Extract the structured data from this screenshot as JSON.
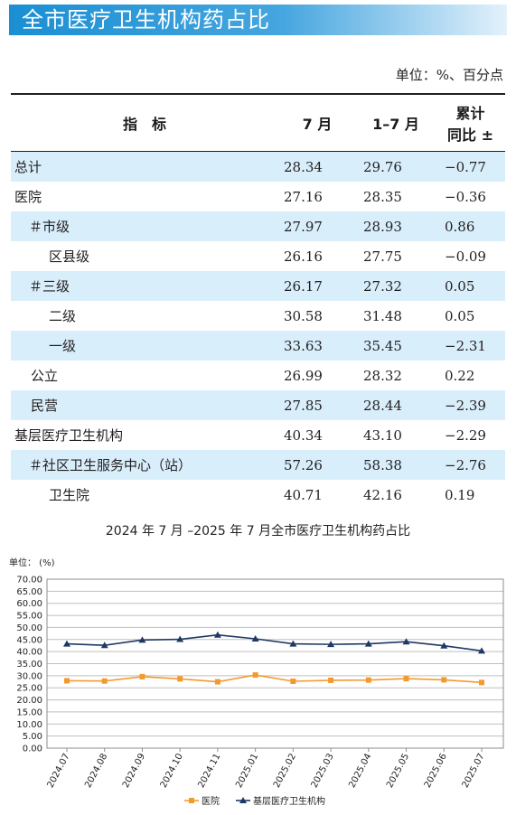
{
  "banner": {
    "title": "全市医疗卫生机构药占比"
  },
  "unit_note": "单位：%、百分点",
  "table": {
    "headers": {
      "indicator": "指　标",
      "month": "7 月",
      "ytd": "1–7 月",
      "change_line1": "累计",
      "change_line2": "同比 ±"
    },
    "rows": [
      {
        "label": "总计",
        "month": "28.34",
        "ytd": "29.76",
        "change": "−0.77"
      },
      {
        "label": "医院",
        "month": "27.16",
        "ytd": "28.35",
        "change": "−0.36"
      },
      {
        "label": "＃市级",
        "month": "27.97",
        "ytd": "28.93",
        "change": "0.86"
      },
      {
        "label": "区县级",
        "month": "26.16",
        "ytd": "27.75",
        "change": "−0.09"
      },
      {
        "label": "＃三级",
        "month": "26.17",
        "ytd": "27.32",
        "change": "0.05"
      },
      {
        "label": "二级",
        "month": "30.58",
        "ytd": "31.48",
        "change": "0.05"
      },
      {
        "label": "一级",
        "month": "33.63",
        "ytd": "35.45",
        "change": "−2.31"
      },
      {
        "label": "公立",
        "month": "26.99",
        "ytd": "28.32",
        "change": "0.22"
      },
      {
        "label": "民营",
        "month": "27.85",
        "ytd": "28.44",
        "change": "−2.39"
      },
      {
        "label": "基层医疗卫生机构",
        "month": "40.34",
        "ytd": "43.10",
        "change": "−2.29"
      },
      {
        "label": "＃社区卫生服务中心（站）",
        "month": "57.26",
        "ytd": "58.38",
        "change": "−2.76"
      },
      {
        "label": "卫生院",
        "month": "40.71",
        "ytd": "42.16",
        "change": "0.19"
      }
    ]
  },
  "chart_data": {
    "type": "line",
    "title": "2024 年 7 月 –2025 年 7 月全市医疗卫生机构药占比",
    "unit_label": "单位：  (%)",
    "x": [
      "2024.07",
      "2024.08",
      "2024.09",
      "2024.10",
      "2024.11",
      "2025.01",
      "2025.02",
      "2025.03",
      "2025.04",
      "2025.05",
      "2025.06",
      "2025.07"
    ],
    "ylim": [
      0,
      70
    ],
    "yticks": [
      "0.00",
      "5.00",
      "10.00",
      "15.00",
      "20.00",
      "25.00",
      "30.00",
      "35.00",
      "40.00",
      "45.00",
      "50.00",
      "55.00",
      "60.00",
      "65.00",
      "70.00"
    ],
    "grid": true,
    "legend_position": "bottom",
    "series": [
      {
        "name": "医院",
        "color": "#f39a2f",
        "marker": "square",
        "values": [
          27.9,
          27.8,
          29.6,
          28.7,
          27.5,
          30.3,
          27.7,
          28.1,
          28.2,
          28.8,
          28.3,
          27.2
        ]
      },
      {
        "name": "基层医疗卫生机构",
        "color": "#1f3864",
        "marker": "triangle",
        "values": [
          43.2,
          42.6,
          44.8,
          45.1,
          46.9,
          45.3,
          43.2,
          43.0,
          43.2,
          44.1,
          42.4,
          40.3
        ]
      }
    ]
  },
  "colors": {
    "banner": "#1b8fd3",
    "row_shade": "#d9eefb",
    "grid": "#bfbfbf"
  }
}
